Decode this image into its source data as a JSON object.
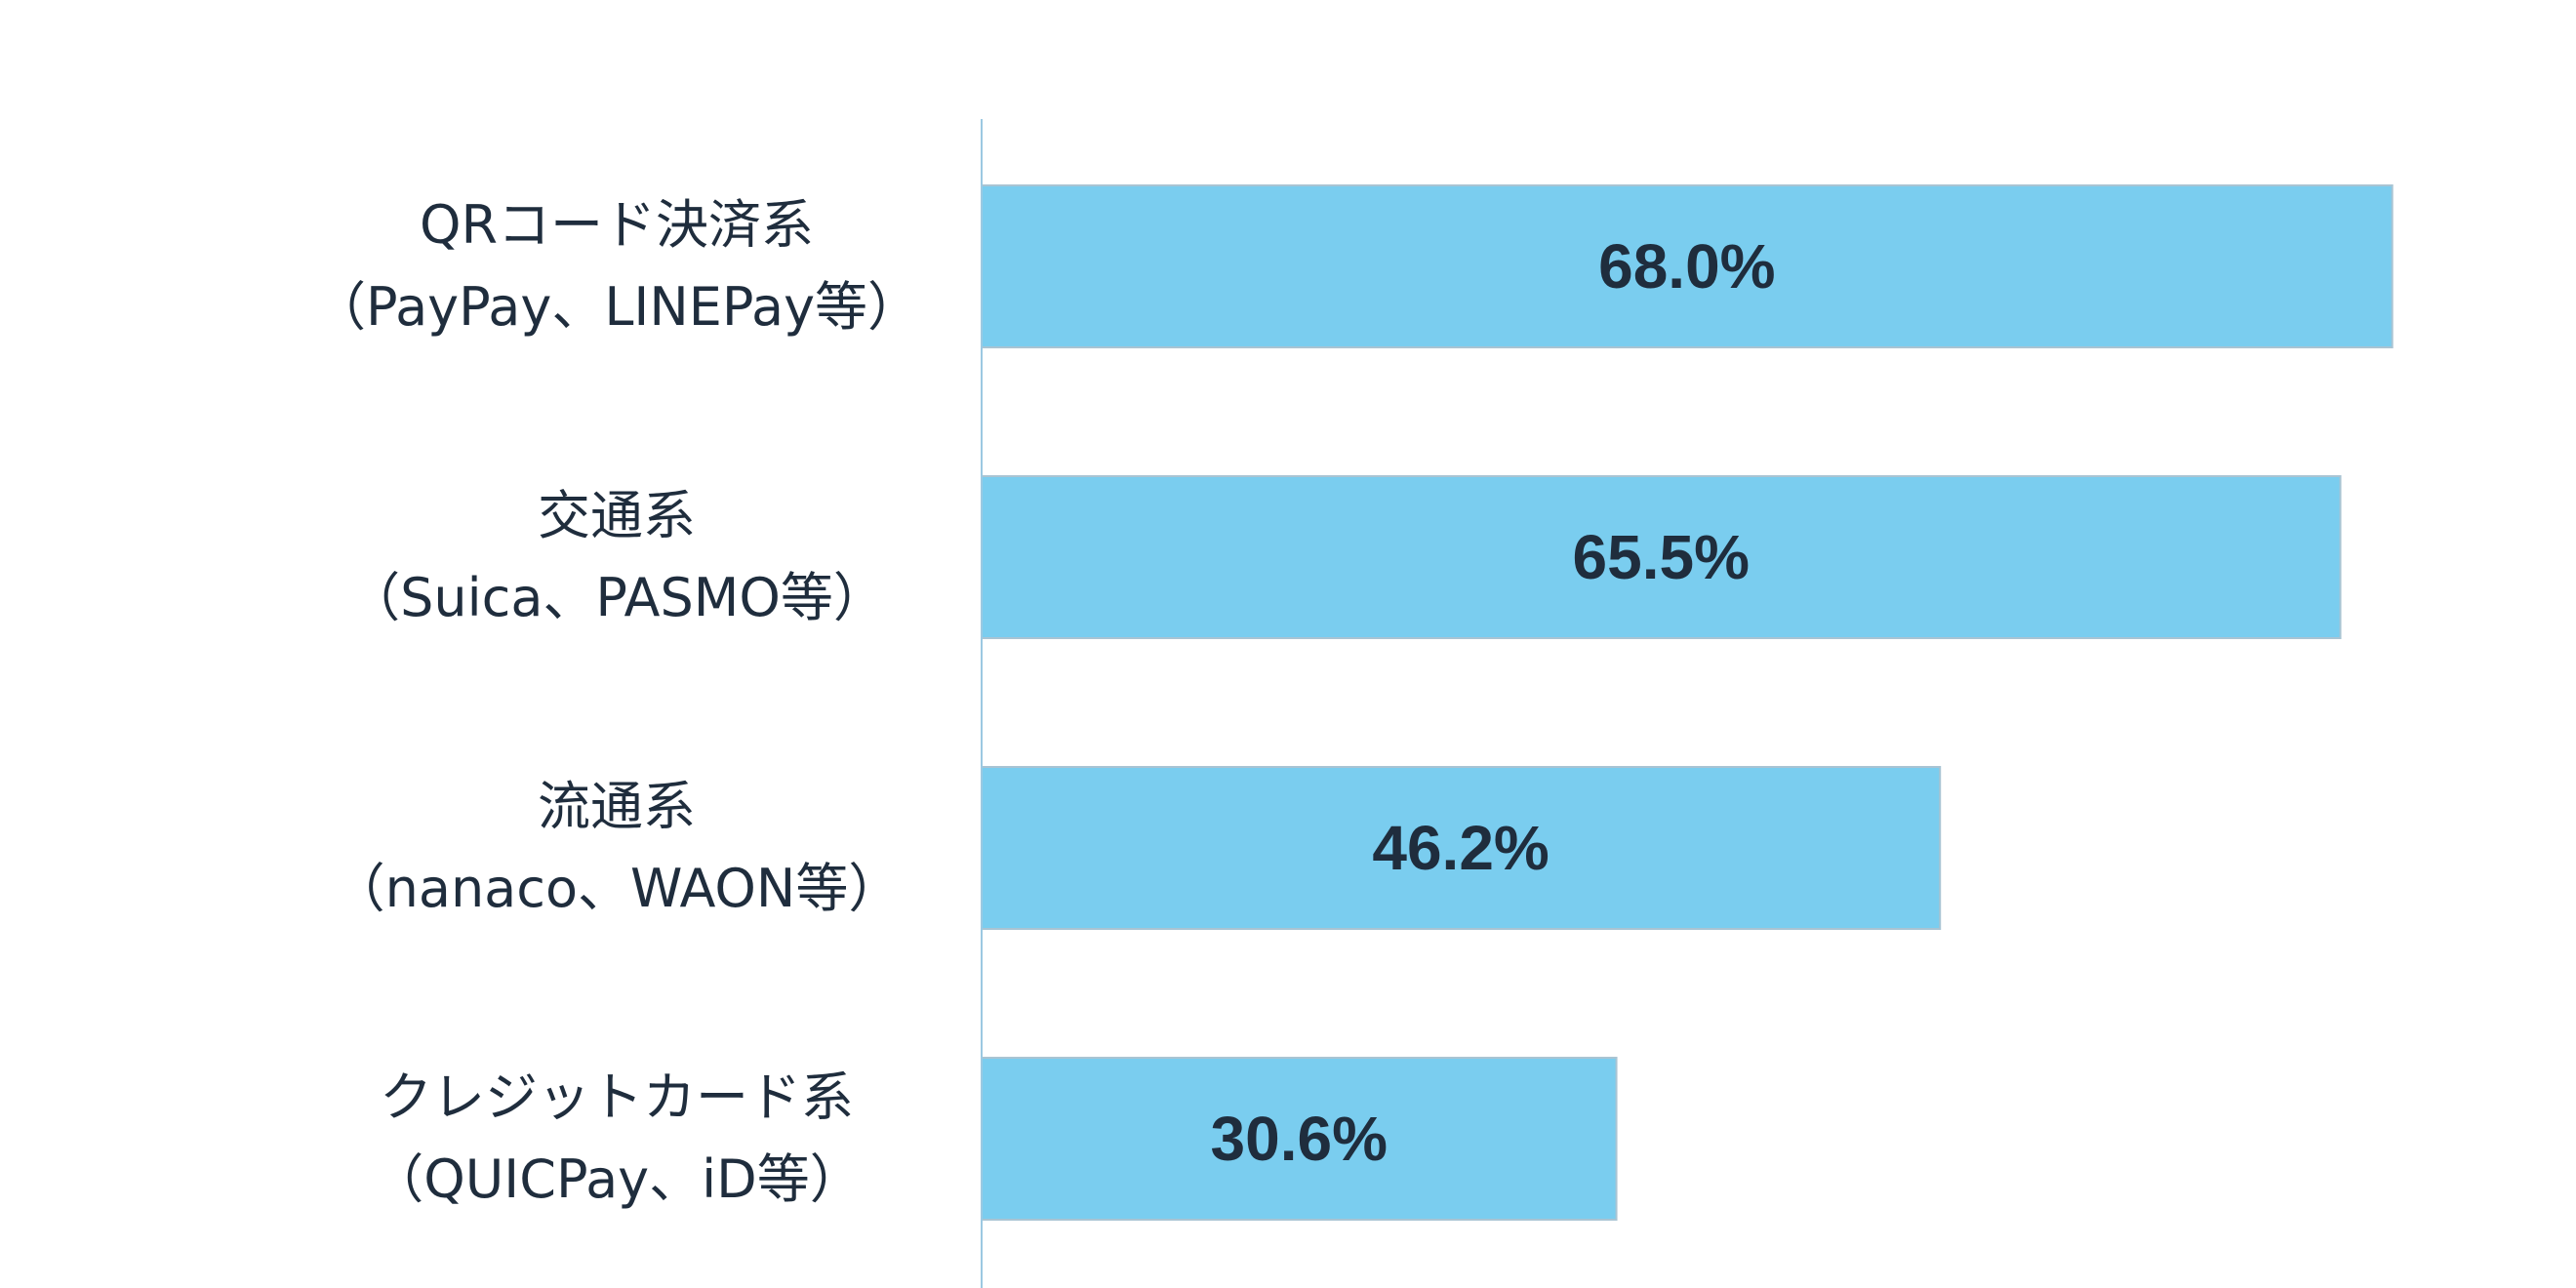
{
  "chart_data": {
    "type": "bar",
    "orientation": "horizontal",
    "title": "",
    "xlabel": "",
    "ylabel": "",
    "categories": [
      [
        "QRコード決済系",
        "（PayPay、LINEPay等）"
      ],
      [
        "交通系",
        "（Suica、PASMO等）"
      ],
      [
        "流通系",
        "（nanaco、WAON等）"
      ],
      [
        "クレジットカード系",
        "（QUICPay、iD等）"
      ]
    ],
    "values": [
      68.0,
      65.5,
      46.2,
      30.6
    ],
    "value_labels": [
      "68.0%",
      "65.5%",
      "46.2%",
      "30.6%"
    ],
    "xlim": [
      0,
      100
    ],
    "grid": false,
    "legend": "none",
    "colors": {
      "bar": "#7acdef",
      "bar_border": "#a9c4d3",
      "axis": "#9cc9e2",
      "text": "#1f2d3d"
    }
  }
}
